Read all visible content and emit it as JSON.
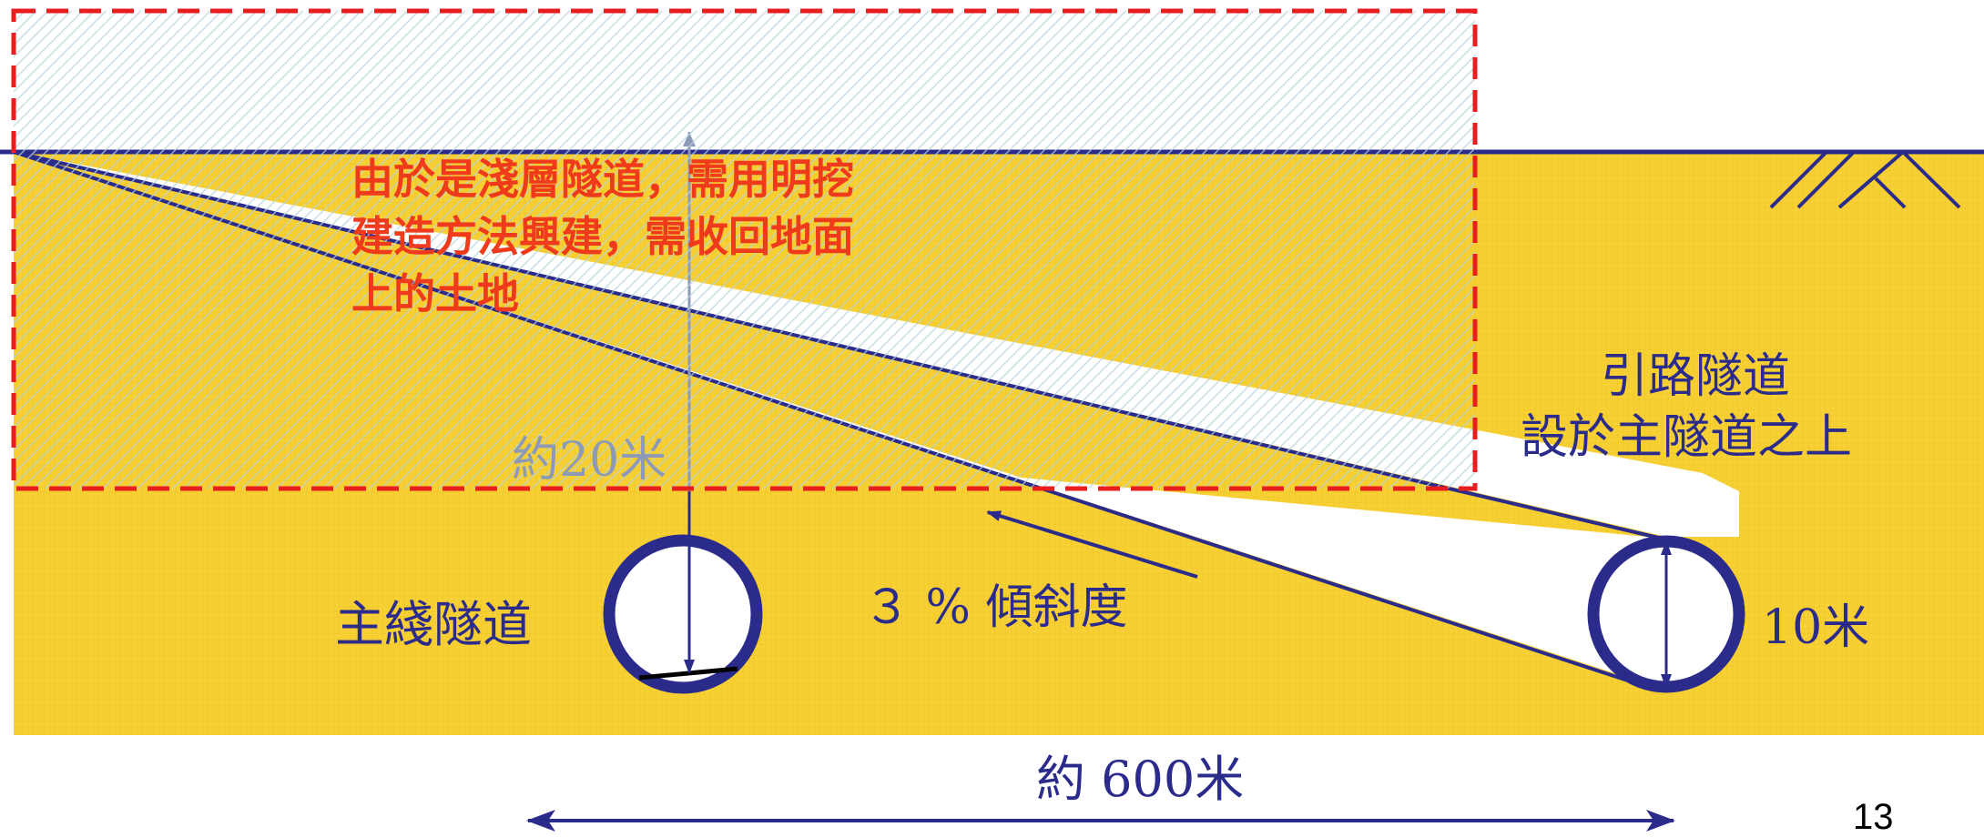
{
  "labels": {
    "note_lines": [
      "由於是淺層隧道，需用明挖",
      "建造方法興建，需收回地面",
      "上的土地"
    ],
    "depth": "約20米",
    "main_tunnel": "主綫隧道",
    "slope": "３ % 傾斜度",
    "access_tunnel_line1": "引路隧道",
    "access_tunnel_line2": "設於主隧道之上",
    "diameter": "10米",
    "length": "約 600米",
    "page_number": "13"
  },
  "colors": {
    "soil": "#f7d034",
    "soil_light": "#f4e7a8",
    "navy": "#2b2b8c",
    "red_dash": "#e81e1e",
    "note_red": "#f03a1c",
    "hatch_blue": "#aacdd8"
  }
}
